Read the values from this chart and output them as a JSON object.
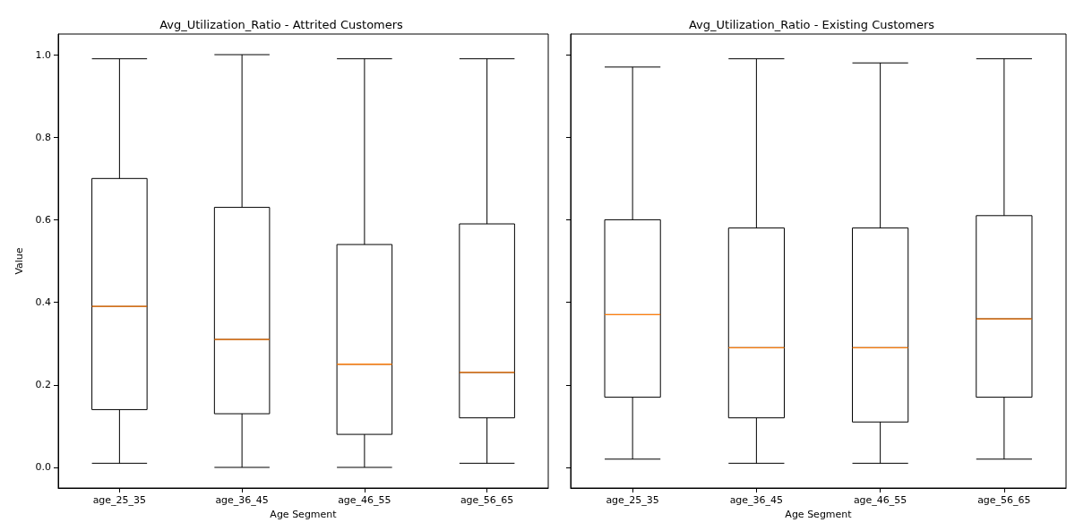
{
  "chart_data": [
    {
      "type": "box",
      "title": "Avg_Utilization_Ratio - Attrited Customers",
      "xlabel": "Age Segment",
      "ylabel": "Value",
      "categories": [
        "age_25_35",
        "age_36_45",
        "age_46_55",
        "age_56_65"
      ],
      "ylim": [
        -0.05,
        1.05
      ],
      "yticks": [
        {
          "value": 0,
          "label": "0.0"
        },
        0.2,
        0.4,
        0.6,
        0.8,
        {
          "value": 1,
          "label": "1.0"
        }
      ],
      "boxes": [
        {
          "low": 0.01,
          "q1": 0.14,
          "median": 0.39,
          "q3": 0.7,
          "high": 0.99
        },
        {
          "low": 0.0,
          "q1": 0.13,
          "median": 0.31,
          "q3": 0.63,
          "high": 1.0
        },
        {
          "low": 0.0,
          "q1": 0.08,
          "median": 0.25,
          "q3": 0.54,
          "high": 0.99
        },
        {
          "low": 0.01,
          "q1": 0.12,
          "median": 0.23,
          "q3": 0.59,
          "high": 0.99
        }
      ]
    },
    {
      "type": "box",
      "title": "Avg_Utilization_Ratio - Existing Customers",
      "xlabel": "Age Segment",
      "categories": [
        "age_25_35",
        "age_36_45",
        "age_46_55",
        "age_56_65"
      ],
      "ylim": [
        -0.05,
        1.05
      ],
      "yticks": [
        0,
        0.2,
        0.4,
        0.6,
        0.8,
        1
      ],
      "tick_labels": "x",
      "boxes": [
        {
          "low": 0.02,
          "q1": 0.17,
          "median": 0.37,
          "q3": 0.6,
          "high": 0.97
        },
        {
          "low": 0.01,
          "q1": 0.12,
          "median": 0.29,
          "q3": 0.58,
          "high": 0.99
        },
        {
          "low": 0.01,
          "q1": 0.11,
          "median": 0.29,
          "q3": 0.58,
          "high": 0.98
        },
        {
          "low": 0.02,
          "q1": 0.17,
          "median": 0.36,
          "q3": 0.61,
          "high": 0.99
        }
      ]
    }
  ]
}
